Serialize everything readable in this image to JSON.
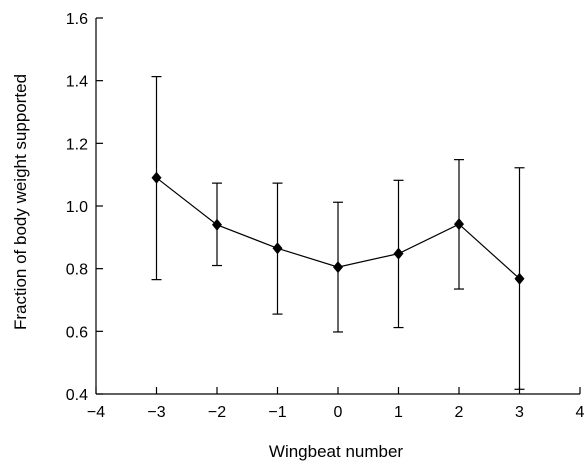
{
  "chart_data": {
    "type": "scatter",
    "xlabel": "Wingbeat number",
    "ylabel": "Fraction of body weight supported",
    "xlim": [
      -4,
      4
    ],
    "ylim": [
      0.4,
      1.6
    ],
    "xticks": [
      -4,
      -3,
      -2,
      -1,
      0,
      1,
      2,
      3,
      4
    ],
    "xtick_labels": [
      "−4",
      "−3",
      "−2",
      "−1",
      "0",
      "1",
      "2",
      "3",
      "4"
    ],
    "yticks": [
      0.4,
      0.6,
      0.8,
      1.0,
      1.2,
      1.4,
      1.6
    ],
    "ytick_labels": [
      "0.4",
      "0.6",
      "0.8",
      "1.0",
      "1.2",
      "1.4",
      "1.6"
    ],
    "grid": false,
    "marker": "diamond",
    "connected": true,
    "error_bars": true,
    "series": [
      {
        "x": [
          -3,
          -2,
          -1,
          0,
          1,
          2,
          3
        ],
        "y": [
          1.09,
          0.94,
          0.865,
          0.805,
          0.848,
          0.942,
          0.768
        ],
        "err_low": [
          0.765,
          0.81,
          0.655,
          0.598,
          0.612,
          0.735,
          0.415
        ],
        "err_high": [
          1.413,
          1.073,
          1.073,
          1.012,
          1.082,
          1.148,
          1.122
        ]
      }
    ]
  }
}
